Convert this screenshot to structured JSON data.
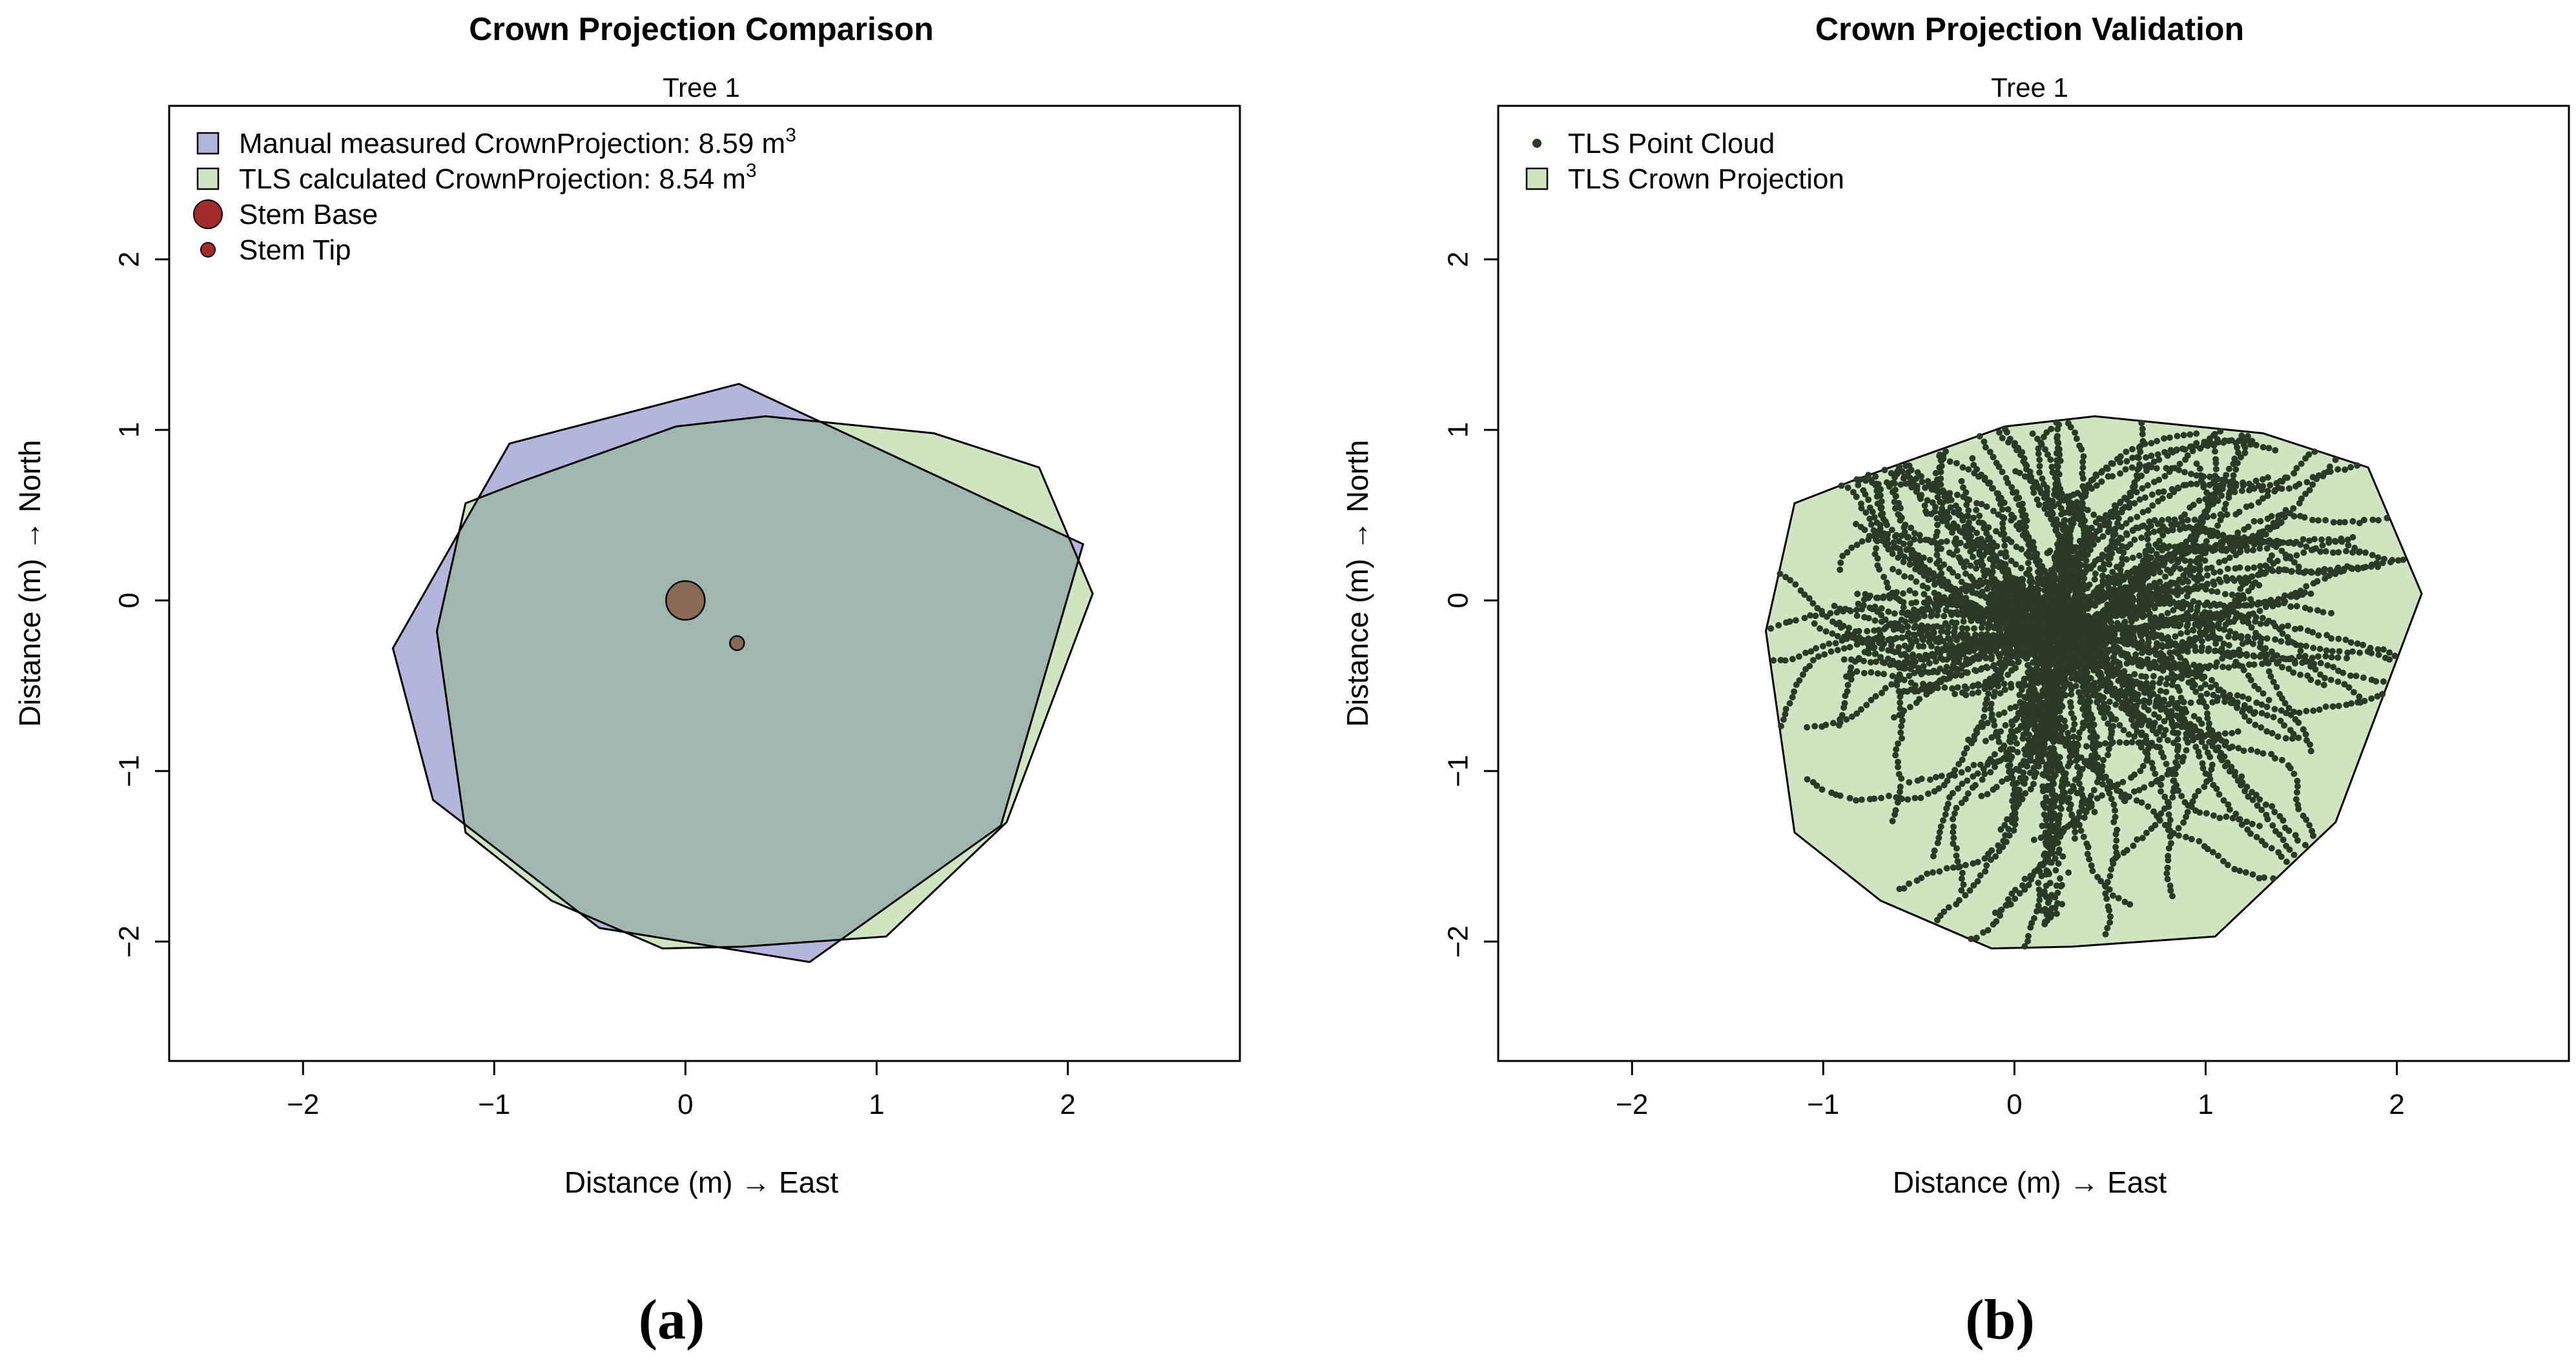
{
  "figure": {
    "panels": [
      {
        "caption": "(a)"
      },
      {
        "caption": "(b)"
      }
    ]
  },
  "colors": {
    "manual_fill": "#b3b5dd",
    "tls_fill": "#cfe5c1",
    "overlap_fill": "#9fb7ae",
    "stem_fill": "#a52a2a",
    "stem_overlap_fill": "#8a6a55",
    "points": "#2a3a26",
    "outline": "#000000"
  },
  "chart_data": [
    {
      "type": "scatter",
      "title": "Crown Projection Comparison",
      "subtitle": "Tree 1",
      "xlabel": "Distance (m) → East",
      "ylabel": "Distance (m) → North",
      "xlim": [
        -2.7,
        2.9
      ],
      "ylim": [
        -2.7,
        2.9
      ],
      "xticks": [
        -2,
        -1,
        0,
        1,
        2
      ],
      "yticks": [
        -2,
        -1,
        0,
        1,
        2
      ],
      "xtick_labels": [
        "−2",
        "−1",
        "0",
        "1",
        "2"
      ],
      "ytick_labels": [
        "−2",
        "−1",
        "0",
        "1",
        "2"
      ],
      "grid": false,
      "legend_position": "top-left",
      "legend": [
        {
          "label": "Manual measured CrownProjection: 8.59 m",
          "sup": "3",
          "marker": "square",
          "color": "#b3b5dd"
        },
        {
          "label": "TLS calculated CrownProjection:   8.54 m",
          "sup": "3",
          "marker": "square",
          "color": "#cfe5c1"
        },
        {
          "label": "Stem Base",
          "marker": "circle-large",
          "color": "#a52a2a"
        },
        {
          "label": "Stem Tip",
          "marker": "circle-small",
          "color": "#a52a2a"
        }
      ],
      "polygons": [
        {
          "name": "Manual measured CrownProjection",
          "vertices": [
            [
              0.28,
              1.27
            ],
            [
              2.08,
              0.33
            ],
            [
              1.65,
              -1.32
            ],
            [
              0.65,
              -2.12
            ],
            [
              -0.45,
              -1.92
            ],
            [
              -1.32,
              -1.17
            ],
            [
              -1.53,
              -0.28
            ],
            [
              -0.92,
              0.92
            ]
          ]
        },
        {
          "name": "TLS calculated CrownProjection",
          "vertices": [
            [
              -0.05,
              1.02
            ],
            [
              0.42,
              1.08
            ],
            [
              1.3,
              0.98
            ],
            [
              1.85,
              0.78
            ],
            [
              2.13,
              0.04
            ],
            [
              1.68,
              -1.3
            ],
            [
              1.05,
              -1.97
            ],
            [
              0.3,
              -2.03
            ],
            [
              -0.12,
              -2.04
            ],
            [
              -0.7,
              -1.76
            ],
            [
              -1.15,
              -1.36
            ],
            [
              -1.3,
              -0.18
            ],
            [
              -1.15,
              0.57
            ],
            [
              -0.85,
              0.7
            ]
          ]
        }
      ],
      "points": [
        {
          "name": "Stem Base",
          "x": 0.0,
          "y": 0.0,
          "size": "large"
        },
        {
          "name": "Stem Tip",
          "x": 0.27,
          "y": -0.25,
          "size": "small"
        }
      ]
    },
    {
      "type": "scatter",
      "title": "Crown Projection Validation",
      "subtitle": "Tree 1",
      "xlabel": "Distance (m) → East",
      "ylabel": "Distance (m) → North",
      "xlim": [
        -2.7,
        2.9
      ],
      "ylim": [
        -2.7,
        2.9
      ],
      "xticks": [
        -2,
        -1,
        0,
        1,
        2
      ],
      "yticks": [
        -2,
        -1,
        0,
        1,
        2
      ],
      "xtick_labels": [
        "−2",
        "−1",
        "0",
        "1",
        "2"
      ],
      "ytick_labels": [
        "−2",
        "−1",
        "0",
        "1",
        "2"
      ],
      "grid": false,
      "legend_position": "top-left",
      "legend": [
        {
          "label": "TLS Point Cloud",
          "marker": "dot",
          "color": "#2a3a26"
        },
        {
          "label": "TLS Crown Projection",
          "marker": "square",
          "color": "#cfe5c1"
        }
      ],
      "polygons": [
        {
          "name": "TLS Crown Projection",
          "vertices": [
            [
              -0.05,
              1.02
            ],
            [
              0.42,
              1.08
            ],
            [
              1.3,
              0.98
            ],
            [
              1.85,
              0.78
            ],
            [
              2.13,
              0.04
            ],
            [
              1.68,
              -1.3
            ],
            [
              1.05,
              -1.97
            ],
            [
              0.3,
              -2.03
            ],
            [
              -0.12,
              -2.04
            ],
            [
              -0.7,
              -1.76
            ],
            [
              -1.15,
              -1.36
            ],
            [
              -1.3,
              -0.18
            ],
            [
              -1.15,
              0.57
            ],
            [
              -0.85,
              0.7
            ]
          ]
        }
      ],
      "point_cloud": {
        "name": "TLS Point Cloud",
        "center": [
          0.25,
          -0.2
        ],
        "dense_core": [
          [
            0.0,
            0.0
          ],
          [
            0.35,
            -0.28
          ]
        ]
      }
    }
  ]
}
